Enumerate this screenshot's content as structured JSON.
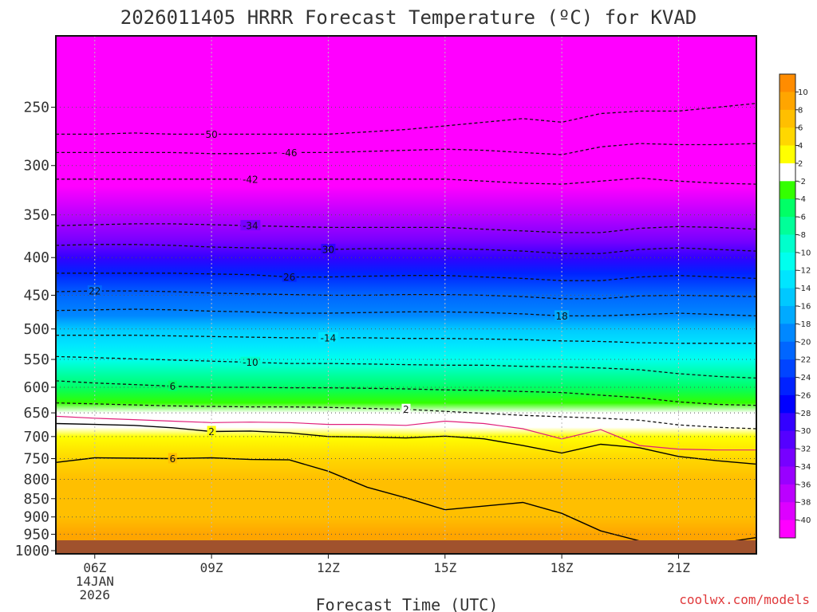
{
  "chart_data": {
    "type": "contour",
    "title": "2026011405 HRRR Forecast Temperature (ºC) for KVAD",
    "xlabel": "Forecast Time (UTC)",
    "ylabel": "Pressure (hPa)",
    "credit": "coolwx.com/models",
    "x_hours": [
      5,
      6,
      7,
      8,
      9,
      10,
      11,
      12,
      13,
      14,
      15,
      16,
      17,
      18,
      19,
      20,
      21,
      22,
      23
    ],
    "xlim": [
      5,
      23
    ],
    "ylim": [
      1010,
      200
    ],
    "x_ticks": [
      {
        "hour": 6,
        "lines": [
          "06Z",
          "14JAN",
          "2026"
        ]
      },
      {
        "hour": 9,
        "lines": [
          "09Z"
        ]
      },
      {
        "hour": 12,
        "lines": [
          "12Z"
        ]
      },
      {
        "hour": 15,
        "lines": [
          "15Z"
        ]
      },
      {
        "hour": 18,
        "lines": [
          "18Z"
        ]
      },
      {
        "hour": 21,
        "lines": [
          "21Z"
        ]
      }
    ],
    "y_ticks": [
      "250",
      "300",
      "350",
      "400",
      "450",
      "500",
      "550",
      "600",
      "650",
      "700",
      "750",
      "800",
      "850",
      "900",
      "950",
      "1000"
    ],
    "colorbar_levels": [
      "10",
      "8",
      "6",
      "4",
      "2",
      "-2",
      "-4",
      "-6",
      "-8",
      "-10",
      "-12",
      "-14",
      "-16",
      "-18",
      "-20",
      "-22",
      "-24",
      "-26",
      "-28",
      "-30",
      "-32",
      "-34",
      "-36",
      "-38",
      "-40"
    ],
    "colorbar_colors": [
      "#ff8c00",
      "#ffa500",
      "#ffbf00",
      "#ffd700",
      "#ffff00",
      "#ffffff",
      "#33ff00",
      "#00ff66",
      "#00ff99",
      "#00ffcc",
      "#00ffee",
      "#00e5ff",
      "#00c8ff",
      "#00aaff",
      "#0088ff",
      "#0066ff",
      "#0044ff",
      "#0022ff",
      "#0000ff",
      "#3300ff",
      "#5500ff",
      "#7700ff",
      "#9900ff",
      "#bb00ff",
      "#dd00ff",
      "#ff00ff"
    ],
    "ground_color": "#a0522d",
    "temperature_profile": [
      {
        "p": 200,
        "t": -56
      },
      {
        "p": 250,
        "t": -52
      },
      {
        "p": 275,
        "t": -49
      },
      {
        "p": 300,
        "t": -45
      },
      {
        "p": 320,
        "t": -42
      },
      {
        "p": 350,
        "t": -37
      },
      {
        "p": 380,
        "t": -33
      },
      {
        "p": 400,
        "t": -29
      },
      {
        "p": 420,
        "t": -26
      },
      {
        "p": 450,
        "t": -22
      },
      {
        "p": 480,
        "t": -19
      },
      {
        "p": 500,
        "t": -16
      },
      {
        "p": 525,
        "t": -14
      },
      {
        "p": 550,
        "t": -11
      },
      {
        "p": 580,
        "t": -8
      },
      {
        "p": 600,
        "t": -6
      },
      {
        "p": 630,
        "t": -3
      },
      {
        "p": 650,
        "t": -1
      },
      {
        "p": 680,
        "t": 1
      },
      {
        "p": 700,
        "t": 2
      },
      {
        "p": 750,
        "t": 5
      },
      {
        "p": 800,
        "t": 6
      },
      {
        "p": 850,
        "t": 6.5
      },
      {
        "p": 900,
        "t": 7
      },
      {
        "p": 950,
        "t": 8
      },
      {
        "p": 1000,
        "t": 9
      }
    ],
    "contours": [
      {
        "level": -50,
        "label": "50",
        "style": "dashed",
        "label_hour": 9,
        "p": [
          272,
          272,
          271,
          272,
          272,
          272,
          272,
          272,
          270,
          268,
          265,
          262,
          259,
          262,
          255,
          253,
          253,
          250,
          247
        ]
      },
      {
        "level": -46,
        "label": "-46",
        "style": "dashed",
        "label_hour": 11,
        "p": [
          288,
          288,
          288,
          288,
          289,
          289,
          288,
          288,
          287,
          286,
          285,
          286,
          288,
          290,
          283,
          280,
          281,
          281,
          280
        ]
      },
      {
        "level": -42,
        "label": "-42",
        "style": "dashed",
        "label_hour": 10,
        "p": [
          313,
          313,
          313,
          313,
          313,
          313,
          313,
          313,
          313,
          313,
          313,
          315,
          317,
          318,
          315,
          312,
          315,
          317,
          318
        ]
      },
      {
        "level": -34,
        "label": "-34",
        "style": "dashed",
        "label_hour": 10,
        "p": [
          362,
          361,
          360,
          360,
          361,
          362,
          363,
          364,
          364,
          364,
          364,
          366,
          368,
          370,
          370,
          365,
          363,
          364,
          366
        ]
      },
      {
        "level": -30,
        "label": "30",
        "style": "dashed",
        "label_hour": 12,
        "p": [
          385,
          384,
          384,
          385,
          387,
          388,
          389,
          390,
          389,
          389,
          389,
          390,
          392,
          395,
          395,
          390,
          388,
          390,
          392
        ]
      },
      {
        "level": -26,
        "label": "26",
        "style": "dashed",
        "label_hour": 11,
        "p": [
          420,
          420,
          420,
          420,
          421,
          422,
          425,
          425,
          424,
          423,
          423,
          425,
          427,
          430,
          430,
          425,
          423,
          425,
          427
        ]
      },
      {
        "level": -22,
        "label": "22",
        "style": "dashed",
        "label_hour": 6,
        "p": [
          445,
          444,
          444,
          445,
          447,
          448,
          449,
          450,
          450,
          449,
          449,
          450,
          452,
          455,
          455,
          451,
          450,
          451,
          452
        ]
      },
      {
        "level": -18,
        "label": "18",
        "style": "dashed",
        "label_hour": 18,
        "p": [
          472,
          471,
          470,
          471,
          473,
          474,
          476,
          476,
          475,
          474,
          474,
          475,
          477,
          480,
          480,
          478,
          476,
          478,
          480
        ]
      },
      {
        "level": -14,
        "label": "-14",
        "style": "dashed",
        "label_hour": 12,
        "p": [
          510,
          510,
          510,
          511,
          512,
          513,
          514,
          514,
          514,
          515,
          515,
          516,
          517,
          519,
          520,
          522,
          523,
          523,
          523
        ]
      },
      {
        "level": -10,
        "label": "-10",
        "style": "dashed",
        "label_hour": 10,
        "p": [
          545,
          547,
          549,
          551,
          553,
          555,
          557,
          557,
          558,
          559,
          560,
          560,
          562,
          563,
          565,
          568,
          575,
          580,
          583
        ]
      },
      {
        "level": -6,
        "label": "6",
        "style": "dashed",
        "label_hour": 8,
        "p": [
          588,
          592,
          595,
          598,
          600,
          600,
          601,
          601,
          602,
          603,
          605,
          606,
          608,
          610,
          615,
          620,
          628,
          633,
          635
        ]
      },
      {
        "level": -2,
        "label": "2",
        "style": "dashed",
        "label_hour": 14,
        "p": [
          630,
          632,
          634,
          636,
          637,
          638,
          638,
          639,
          641,
          643,
          647,
          651,
          655,
          658,
          661,
          665,
          675,
          680,
          683
        ]
      },
      {
        "level": 0,
        "label": "",
        "style": "magenta",
        "label_hour": -1,
        "p": [
          657,
          661,
          664,
          667,
          670,
          669,
          670,
          674,
          674,
          676,
          667,
          672,
          683,
          705,
          685,
          720,
          728,
          730,
          730
        ]
      },
      {
        "level": 2,
        "label": "2",
        "style": "solid",
        "label_hour": 9,
        "p": [
          672,
          674,
          676,
          681,
          689,
          688,
          692,
          700,
          701,
          703,
          699,
          705,
          720,
          737,
          717,
          725,
          745,
          755,
          763
        ]
      },
      {
        "level": 6,
        "label": "6",
        "style": "solid",
        "label_hour": 8,
        "p": [
          759,
          748,
          749,
          750,
          748,
          752,
          753,
          780,
          820,
          848,
          880,
          870,
          860,
          890,
          940,
          970,
          980,
          978,
          960
        ]
      },
      {
        "level": 10,
        "label": "10",
        "style": "solid",
        "label_hour": 12,
        "p": [
          997,
          994,
          992,
          993,
          994,
          995,
          997,
          1000,
          994,
          995,
          1003,
          1005,
          1005,
          1005,
          1005,
          1005,
          1005,
          1005,
          1005
        ]
      }
    ]
  }
}
